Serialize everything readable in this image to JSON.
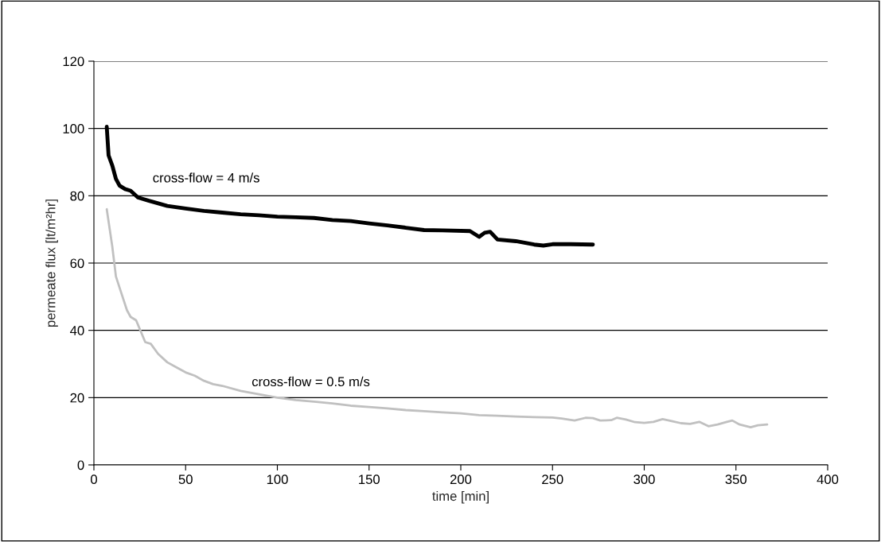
{
  "chart_data": {
    "type": "line",
    "xlabel": "time [min]",
    "ylabel": "permeate flux [lt/m²hr]",
    "xlim": [
      0,
      400
    ],
    "xticks": [
      0,
      50,
      100,
      150,
      200,
      250,
      300,
      350,
      400
    ],
    "ylim": [
      0,
      120
    ],
    "yticks": [
      0,
      20,
      40,
      60,
      80,
      100,
      120
    ],
    "grid": "y",
    "legend": false,
    "series": [
      {
        "name": "cross-flow = 4 m/s",
        "color": "#000000",
        "x": [
          7,
          8,
          10,
          12,
          14,
          17,
          20,
          24,
          30,
          40,
          50,
          60,
          70,
          80,
          90,
          100,
          110,
          120,
          130,
          140,
          150,
          160,
          170,
          180,
          190,
          205,
          210,
          213,
          216,
          220,
          230,
          240,
          245,
          250,
          260,
          272
        ],
        "values": [
          100.5,
          92,
          89,
          85,
          83,
          82,
          81.5,
          79.5,
          78.5,
          77,
          76.2,
          75.5,
          75,
          74.5,
          74.2,
          73.8,
          73.6,
          73.4,
          72.8,
          72.5,
          71.8,
          71.2,
          70.5,
          69.8,
          69.7,
          69.5,
          67.8,
          69,
          69.3,
          67,
          66.5,
          65.5,
          65.2,
          65.6,
          65.6,
          65.5
        ]
      },
      {
        "name": "cross-flow = 0.5 m/s",
        "color": "#c0c0c0",
        "x": [
          7,
          10,
          12,
          15,
          18,
          20,
          23,
          28,
          31,
          35,
          40,
          45,
          50,
          55,
          60,
          65,
          70,
          80,
          90,
          100,
          110,
          120,
          130,
          140,
          150,
          160,
          170,
          180,
          190,
          200,
          210,
          220,
          230,
          240,
          250,
          255,
          262,
          268,
          272,
          276,
          282,
          285,
          290,
          295,
          300,
          305,
          310,
          315,
          320,
          325,
          330,
          335,
          340,
          345,
          348,
          352,
          358,
          362,
          367
        ],
        "values": [
          76,
          65,
          56,
          51,
          46,
          44,
          43,
          36.5,
          36,
          33,
          30.5,
          29,
          27.5,
          26.5,
          25,
          24,
          23.5,
          22,
          21,
          20,
          19.3,
          18.8,
          18.3,
          17.6,
          17.2,
          16.8,
          16.3,
          16,
          15.6,
          15.3,
          14.8,
          14.6,
          14.4,
          14.2,
          14.1,
          13.8,
          13.2,
          14,
          13.9,
          13.2,
          13.3,
          14,
          13.5,
          12.7,
          12.5,
          12.8,
          13.6,
          13,
          12.4,
          12.2,
          12.8,
          11.5,
          12,
          12.8,
          13.2,
          12,
          11.2,
          11.8,
          12
        ]
      }
    ]
  }
}
